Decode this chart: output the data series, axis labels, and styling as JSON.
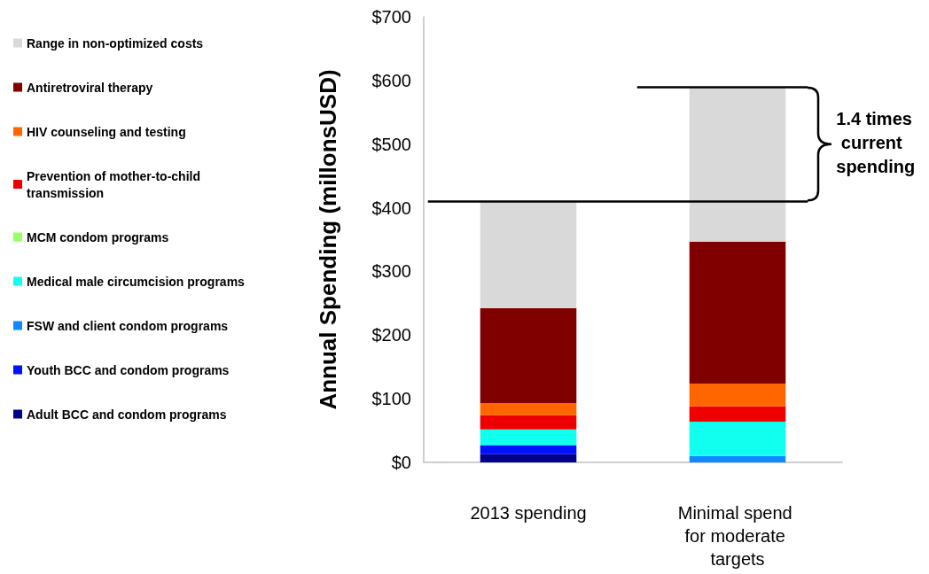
{
  "chart_data": {
    "type": "bar",
    "stacked": true,
    "ylabel": "Annual Spending (millonsUSD)",
    "categories": [
      "2013 spending",
      "Minimal spend for moderate targets"
    ],
    "series": [
      {
        "name": "Adult BCC and condom programs",
        "color": "#000088",
        "values": [
          13,
          0
        ]
      },
      {
        "name": "Youth BCC and condom programs",
        "color": "#0011ff",
        "values": [
          14,
          0
        ]
      },
      {
        "name": "FSW and client condom programs",
        "color": "#1188ff",
        "values": [
          0,
          10
        ]
      },
      {
        "name": "Medical male circumcision programs",
        "color": "#11ffee",
        "values": [
          25,
          54
        ]
      },
      {
        "name": "MCM condom programs",
        "color": "#99ff66",
        "values": [
          0,
          0
        ]
      },
      {
        "name": "Prevention of mother-to-child transmission",
        "color": "#ee0000",
        "values": [
          22,
          24
        ]
      },
      {
        "name": "HIV counseling and testing",
        "color": "#ff6600",
        "values": [
          19,
          36
        ]
      },
      {
        "name": "Antiretroviral therapy",
        "color": "#800000",
        "values": [
          149,
          223
        ]
      },
      {
        "name": "Range in non-optimized costs",
        "color": "#d9d9d9",
        "values": [
          168,
          243
        ]
      }
    ],
    "ylim": [
      0,
      700
    ],
    "yticks": [
      {
        "value": 0,
        "label": "$0"
      },
      {
        "value": 100,
        "label": "$100"
      },
      {
        "value": 200,
        "label": "$200"
      },
      {
        "value": 300,
        "label": "$300"
      },
      {
        "value": 400,
        "label": "$400"
      },
      {
        "value": 500,
        "label": "$500"
      },
      {
        "value": 600,
        "label": "$600"
      },
      {
        "value": 700,
        "label": "$700"
      }
    ],
    "ref_lines": [
      {
        "axis": "y",
        "value": 410
      },
      {
        "axis": "y",
        "value": 590
      }
    ],
    "annotations": [
      "1.4 times current spending"
    ],
    "legend": "left",
    "grid": false
  }
}
